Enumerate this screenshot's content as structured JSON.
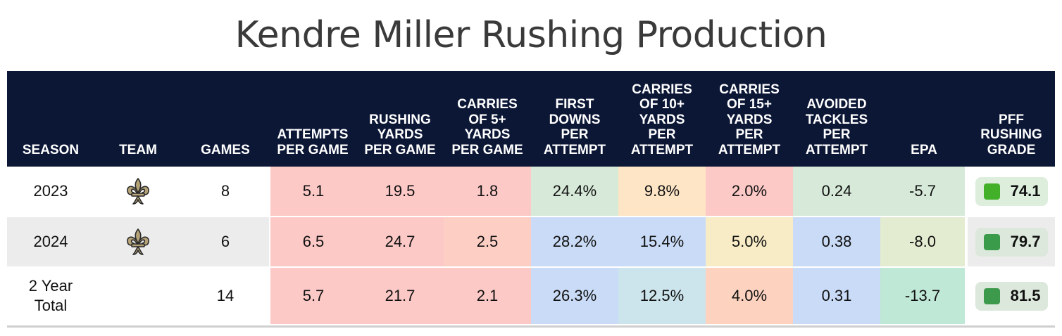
{
  "title": "Kendre Miller Rushing Production",
  "headers": [
    "SEASON",
    "TEAM",
    "GAMES",
    "ATTEMPTS\nPER GAME",
    "RUSHING\nYARDS\nPER GAME",
    "CARRIES\nOF 5+\nYARDS\nPER GAME",
    "FIRST\nDOWNS\nPER\nATTEMPT",
    "CARRIES\nOF 10+\nYARDS\nPER\nATTEMPT",
    "CARRIES\nOF 15+\nYARDS\nPER\nATTEMPT",
    "AVOIDED\nTACKLES\nPER\nATTEMPT",
    "EPA",
    "PFF\nRUSHING\nGRADE"
  ],
  "rows": [
    {
      "season": "2023",
      "team_logo": "fleur-de-lis-icon",
      "games": "8",
      "values": [
        "5.1",
        "19.5",
        "1.8",
        "24.4%",
        "9.8%",
        "2.0%",
        "0.24",
        "-5.7"
      ],
      "colors": [
        "#fcc9c6",
        "#fcc9c6",
        "#fcc9c6",
        "#d7ead9",
        "#fde5c6",
        "#fcc9c6",
        "#d7ead9",
        "#d7ead9"
      ],
      "grade": "74.1",
      "grade_dot": "#43b02a",
      "grade_bg": "#ddeedd"
    },
    {
      "season": "2024",
      "team_logo": "fleur-de-lis-icon",
      "games": "6",
      "values": [
        "6.5",
        "24.7",
        "2.5",
        "28.2%",
        "15.4%",
        "5.0%",
        "0.38",
        "-8.0"
      ],
      "colors": [
        "#fcc9c6",
        "#fcc9c6",
        "#fdcfc4",
        "#c9dbf6",
        "#c9dbf6",
        "#f8ecc6",
        "#c9dbf6",
        "#e3ecd1"
      ],
      "grade": "79.7",
      "grade_dot": "#3a9b4a",
      "grade_bg": "#dbe8db"
    },
    {
      "season": "2 Year\nTotal",
      "team_logo": "",
      "games": "14",
      "values": [
        "5.7",
        "21.7",
        "2.1",
        "26.3%",
        "12.5%",
        "4.0%",
        "0.31",
        "-13.7"
      ],
      "colors": [
        "#fcc9c6",
        "#fcc9c6",
        "#fcc9c6",
        "#c9dbf6",
        "#cce4ec",
        "#fdd3bf",
        "#c9dbf6",
        "#bfe8d6"
      ],
      "grade": "81.5",
      "grade_dot": "#3d9a4c",
      "grade_bg": "#dbe8db"
    }
  ],
  "chart_data": {
    "type": "table",
    "title": "Kendre Miller Rushing Production",
    "columns": [
      "SEASON",
      "TEAM",
      "GAMES",
      "ATTEMPTS PER GAME",
      "RUSHING YARDS PER GAME",
      "CARRIES OF 5+ YARDS PER GAME",
      "FIRST DOWNS PER ATTEMPT",
      "CARRIES OF 10+ YARDS PER ATTEMPT",
      "CARRIES OF 15+ YARDS PER ATTEMPT",
      "AVOIDED TACKLES PER ATTEMPT",
      "EPA",
      "PFF RUSHING GRADE"
    ],
    "rows": [
      [
        "2023",
        "fleur-de-lis-icon",
        8,
        5.1,
        19.5,
        1.8,
        "24.4%",
        "9.8%",
        "2.0%",
        0.24,
        -5.7,
        74.1
      ],
      [
        "2024",
        "fleur-de-lis-icon",
        6,
        6.5,
        24.7,
        2.5,
        "28.2%",
        "15.4%",
        "5.0%",
        0.38,
        -8.0,
        79.7
      ],
      [
        "2 Year Total",
        "",
        14,
        5.7,
        21.7,
        2.1,
        "26.3%",
        "12.5%",
        "4.0%",
        0.31,
        -13.7,
        81.5
      ]
    ],
    "header_color": "#0c1736"
  }
}
